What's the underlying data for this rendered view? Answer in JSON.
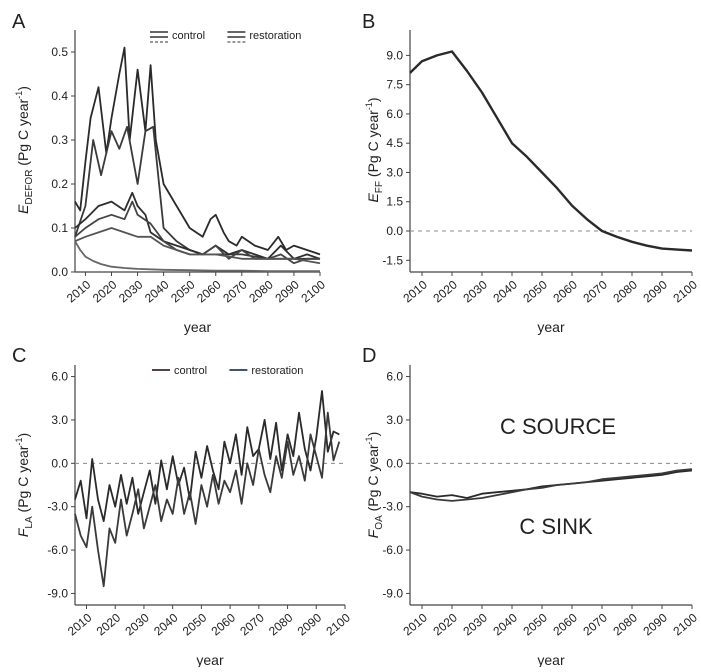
{
  "chart_data": [
    {
      "panel": "A",
      "type": "line",
      "ylabel": "EDEFOR (Pg C year-1)",
      "ylabel_main": "E",
      "ylabel_sub": "DEFOR",
      "ylabel_unit": " (Pg C year",
      "ylabel_exp": "-1",
      "xlabel": "year",
      "xlim": [
        2006,
        2100
      ],
      "ylim": [
        0,
        0.55
      ],
      "yticks": [
        0.0,
        0.1,
        0.2,
        0.3,
        0.4,
        0.5
      ],
      "yticklabels": [
        "0.0",
        "0.1",
        "0.2",
        "0.3",
        "0.4",
        "0.5"
      ],
      "xticks": [
        2010,
        2020,
        2030,
        2040,
        2050,
        2060,
        2070,
        2080,
        2090,
        2100
      ],
      "legend": {
        "entries": [
          "control",
          "restoration"
        ],
        "placement": "top-center"
      },
      "series": [
        {
          "x": [
            2006,
            2008,
            2010,
            2012,
            2015,
            2018,
            2020,
            2023,
            2025,
            2027,
            2030,
            2033,
            2035,
            2037,
            2040,
            2045,
            2050,
            2055,
            2058,
            2060,
            2063,
            2065,
            2068,
            2070,
            2075,
            2080,
            2084,
            2087,
            2090,
            2095,
            2100
          ],
          "y": [
            0.16,
            0.14,
            0.25,
            0.35,
            0.42,
            0.27,
            0.35,
            0.45,
            0.51,
            0.3,
            0.46,
            0.32,
            0.47,
            0.3,
            0.2,
            0.15,
            0.1,
            0.08,
            0.12,
            0.13,
            0.09,
            0.07,
            0.06,
            0.08,
            0.06,
            0.05,
            0.08,
            0.05,
            0.06,
            0.05,
            0.04
          ]
        },
        {
          "x": [
            2006,
            2010,
            2013,
            2016,
            2020,
            2023,
            2026,
            2030,
            2033,
            2036,
            2040,
            2045,
            2050,
            2055,
            2060,
            2065,
            2070,
            2080,
            2085,
            2090,
            2095,
            2100
          ],
          "y": [
            0.08,
            0.15,
            0.3,
            0.22,
            0.32,
            0.28,
            0.33,
            0.2,
            0.32,
            0.33,
            0.1,
            0.07,
            0.05,
            0.04,
            0.04,
            0.04,
            0.04,
            0.03,
            0.03,
            0.03,
            0.03,
            0.03
          ]
        },
        {
          "x": [
            2006,
            2010,
            2015,
            2020,
            2025,
            2028,
            2030,
            2033,
            2035,
            2040,
            2045,
            2050,
            2055,
            2060,
            2065,
            2070,
            2075,
            2080,
            2085,
            2090,
            2095,
            2100
          ],
          "y": [
            0.1,
            0.12,
            0.15,
            0.16,
            0.14,
            0.18,
            0.15,
            0.13,
            0.09,
            0.07,
            0.06,
            0.05,
            0.04,
            0.06,
            0.04,
            0.05,
            0.04,
            0.03,
            0.06,
            0.03,
            0.04,
            0.03
          ]
        },
        {
          "x": [
            2006,
            2010,
            2015,
            2020,
            2025,
            2028,
            2030,
            2035,
            2040,
            2045,
            2050,
            2055,
            2060,
            2065,
            2070,
            2075,
            2080,
            2085,
            2090,
            2095,
            2100
          ],
          "y": [
            0.08,
            0.1,
            0.12,
            0.13,
            0.12,
            0.16,
            0.13,
            0.11,
            0.07,
            0.05,
            0.04,
            0.04,
            0.06,
            0.03,
            0.05,
            0.03,
            0.03,
            0.04,
            0.02,
            0.03,
            0.03
          ]
        },
        {
          "x": [
            2006,
            2010,
            2015,
            2020,
            2025,
            2030,
            2035,
            2040,
            2050,
            2060,
            2070,
            2080,
            2090,
            2100
          ],
          "y": [
            0.07,
            0.08,
            0.09,
            0.1,
            0.09,
            0.08,
            0.08,
            0.06,
            0.04,
            0.04,
            0.03,
            0.03,
            0.03,
            0.02
          ]
        },
        {
          "x": [
            2006,
            2008,
            2010,
            2013,
            2016,
            2020,
            2025,
            2030,
            2040,
            2050,
            2060,
            2070,
            2080,
            2090,
            2100
          ],
          "y": [
            0.07,
            0.05,
            0.035,
            0.025,
            0.018,
            0.012,
            0.009,
            0.007,
            0.005,
            0.004,
            0.003,
            0.003,
            0.002,
            0.002,
            0.002
          ]
        }
      ]
    },
    {
      "panel": "B",
      "type": "line",
      "ylabel": "EFF (Pg C year-1)",
      "ylabel_main": "E",
      "ylabel_sub": "FF",
      "ylabel_unit": " (Pg C year",
      "ylabel_exp": "-1",
      "xlabel": "year",
      "xlim": [
        2006,
        2100
      ],
      "ylim": [
        -2.1,
        10.3
      ],
      "yticks": [
        -1.5,
        0.0,
        1.5,
        3.0,
        4.5,
        6.0,
        7.5,
        9.0
      ],
      "yticklabels": [
        "-1.5",
        "0.0",
        "1.5",
        "3.0",
        "4.5",
        "6.0",
        "7.5",
        "9.0"
      ],
      "xticks": [
        2010,
        2020,
        2030,
        2040,
        2050,
        2060,
        2070,
        2080,
        2090,
        2100
      ],
      "zero_line": true,
      "series": [
        {
          "x": [
            2006,
            2010,
            2015,
            2020,
            2025,
            2030,
            2035,
            2040,
            2045,
            2050,
            2055,
            2060,
            2065,
            2070,
            2075,
            2080,
            2085,
            2090,
            2095,
            2100
          ],
          "y": [
            8.1,
            8.7,
            9.0,
            9.2,
            8.2,
            7.1,
            5.8,
            4.5,
            3.8,
            3.0,
            2.2,
            1.3,
            0.6,
            0.0,
            -0.3,
            -0.55,
            -0.75,
            -0.9,
            -0.95,
            -1.0
          ]
        }
      ]
    },
    {
      "panel": "C",
      "type": "line",
      "ylabel": "FLA (Pg C year-1)",
      "ylabel_main": "F",
      "ylabel_sub": "LA",
      "ylabel_unit": " (Pg C year",
      "ylabel_exp": "-1",
      "xlabel": "year",
      "xlim": [
        2006,
        2100
      ],
      "ylim": [
        -9.8,
        6.8
      ],
      "yticks": [
        -9.0,
        -6.0,
        -3.0,
        0.0,
        3.0,
        6.0
      ],
      "yticklabels": [
        "-9.0",
        "-6.0",
        "-3.0",
        "0.0",
        "3.0",
        "6.0"
      ],
      "xticks": [
        2010,
        2020,
        2030,
        2040,
        2050,
        2060,
        2070,
        2080,
        2090,
        2100
      ],
      "zero_line": true,
      "legend": {
        "entries": [
          "control",
          "restoration"
        ],
        "placement": "top-center"
      },
      "series": [
        {
          "x": [
            2006,
            2008,
            2010,
            2012,
            2014,
            2016,
            2018,
            2020,
            2022,
            2024,
            2026,
            2028,
            2030,
            2032,
            2034,
            2036,
            2038,
            2040,
            2042,
            2044,
            2046,
            2048,
            2050,
            2052,
            2054,
            2056,
            2058,
            2060,
            2062,
            2064,
            2066,
            2068,
            2070,
            2072,
            2074,
            2076,
            2078,
            2080,
            2082,
            2084,
            2086,
            2088,
            2090,
            2092,
            2094,
            2096,
            2098
          ],
          "y": [
            -2.5,
            -1.2,
            -3.8,
            0.3,
            -2.5,
            -4.0,
            -1.5,
            -3.0,
            -0.8,
            -2.8,
            -1.0,
            -3.5,
            -2.0,
            -0.5,
            -2.8,
            0.2,
            -1.8,
            0.5,
            -1.5,
            -0.3,
            -2.5,
            0.8,
            -1.0,
            1.2,
            -0.5,
            -1.8,
            1.5,
            0.0,
            2.0,
            -0.8,
            2.5,
            0.5,
            1.0,
            3.0,
            0.3,
            2.8,
            -0.5,
            2.0,
            0.5,
            3.5,
            1.0,
            -0.5,
            1.8,
            5.0,
            0.8,
            2.2,
            2.0
          ]
        },
        {
          "x": [
            2006,
            2008,
            2010,
            2012,
            2014,
            2016,
            2018,
            2020,
            2022,
            2024,
            2026,
            2028,
            2030,
            2032,
            2034,
            2036,
            2038,
            2040,
            2042,
            2044,
            2046,
            2048,
            2050,
            2052,
            2054,
            2056,
            2058,
            2060,
            2062,
            2064,
            2066,
            2068,
            2070,
            2072,
            2074,
            2076,
            2078,
            2080,
            2082,
            2084,
            2086,
            2088,
            2090,
            2092,
            2094,
            2096,
            2098
          ],
          "y": [
            -3.5,
            -5.0,
            -5.8,
            -3.0,
            -6.0,
            -8.5,
            -4.5,
            -5.5,
            -2.5,
            -5.0,
            -3.5,
            -1.8,
            -4.5,
            -3.0,
            -1.5,
            -4.0,
            -2.5,
            -3.5,
            -1.0,
            -3.5,
            -2.0,
            -4.2,
            -1.5,
            -3.0,
            -0.8,
            -2.8,
            -1.2,
            -2.0,
            -0.5,
            -2.8,
            0.0,
            -1.5,
            1.0,
            -0.8,
            -2.0,
            0.5,
            -1.0,
            1.5,
            -0.8,
            0.5,
            -1.2,
            2.0,
            0.5,
            -1.0,
            3.5,
            0.2,
            1.5
          ]
        }
      ]
    },
    {
      "panel": "D",
      "type": "line",
      "ylabel": "FOA (Pg C year-1)",
      "ylabel_main": "F",
      "ylabel_sub": "OA",
      "ylabel_unit": " (Pg C year",
      "ylabel_exp": "-1",
      "xlabel": "year",
      "xlim": [
        2006,
        2100
      ],
      "ylim": [
        -9.8,
        6.8
      ],
      "yticks": [
        -9.0,
        -6.0,
        -3.0,
        0.0,
        3.0,
        6.0
      ],
      "yticklabels": [
        "-9.0",
        "-6.0",
        "-3.0",
        "0.0",
        "3.0",
        "6.0"
      ],
      "xticks": [
        2010,
        2020,
        2030,
        2040,
        2050,
        2060,
        2070,
        2080,
        2090,
        2100
      ],
      "zero_line": true,
      "annotations": [
        "C SOURCE",
        "C SINK"
      ],
      "series": [
        {
          "x": [
            2006,
            2010,
            2015,
            2020,
            2025,
            2030,
            2035,
            2040,
            2045,
            2050,
            2055,
            2060,
            2065,
            2070,
            2075,
            2080,
            2085,
            2090,
            2095,
            2100
          ],
          "y": [
            -2.0,
            -2.1,
            -2.3,
            -2.2,
            -2.4,
            -2.1,
            -2.0,
            -1.9,
            -1.8,
            -1.6,
            -1.5,
            -1.4,
            -1.3,
            -1.2,
            -1.1,
            -1.0,
            -0.9,
            -0.8,
            -0.6,
            -0.5
          ]
        },
        {
          "x": [
            2006,
            2010,
            2015,
            2020,
            2025,
            2030,
            2035,
            2040,
            2045,
            2050,
            2055,
            2060,
            2065,
            2070,
            2075,
            2080,
            2085,
            2090,
            2095,
            2100
          ],
          "y": [
            -2.0,
            -2.3,
            -2.5,
            -2.6,
            -2.5,
            -2.4,
            -2.2,
            -2.0,
            -1.8,
            -1.7,
            -1.5,
            -1.4,
            -1.3,
            -1.1,
            -1.0,
            -0.9,
            -0.8,
            -0.7,
            -0.5,
            -0.4
          ]
        }
      ]
    }
  ]
}
